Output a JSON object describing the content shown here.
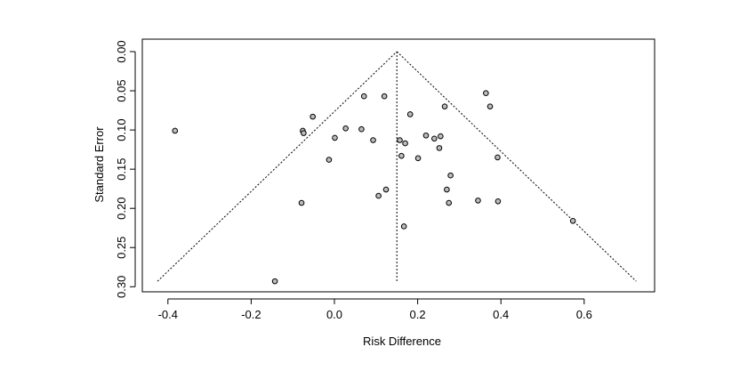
{
  "chart_data": {
    "type": "scatter",
    "title": "",
    "xlabel": "Risk Difference",
    "ylabel": "Standard Error",
    "xlim": [
      -0.45,
      0.75
    ],
    "ylim": [
      0.3,
      0.0
    ],
    "y_axis_reversed": true,
    "x_ticks": [
      -0.4,
      -0.2,
      0.0,
      0.2,
      0.4,
      0.6
    ],
    "x_tick_labels": [
      "-0.4",
      "-0.2",
      "0.0",
      "0.2",
      "0.4",
      "0.6"
    ],
    "y_ticks": [
      0.0,
      0.05,
      0.1,
      0.15,
      0.2,
      0.25,
      0.3
    ],
    "y_tick_labels": [
      "0.00",
      "0.05",
      "0.10",
      "0.15",
      "0.20",
      "0.25",
      "0.30"
    ],
    "grid": false,
    "legend": "none",
    "pooled_estimate": 0.15,
    "funnel": {
      "apex": [
        0.15,
        0.0
      ],
      "left_base": [
        -0.425,
        0.293
      ],
      "right_base": [
        0.725,
        0.293
      ],
      "center_line_bottom": [
        0.15,
        0.293
      ]
    },
    "points": [
      {
        "x": -0.383,
        "y": 0.101
      },
      {
        "x": -0.143,
        "y": 0.293
      },
      {
        "x": -0.079,
        "y": 0.193
      },
      {
        "x": -0.076,
        "y": 0.101
      },
      {
        "x": -0.074,
        "y": 0.104
      },
      {
        "x": -0.052,
        "y": 0.083
      },
      {
        "x": -0.013,
        "y": 0.138
      },
      {
        "x": 0.001,
        "y": 0.11
      },
      {
        "x": 0.027,
        "y": 0.098
      },
      {
        "x": 0.065,
        "y": 0.099
      },
      {
        "x": 0.071,
        "y": 0.057
      },
      {
        "x": 0.093,
        "y": 0.113
      },
      {
        "x": 0.106,
        "y": 0.184
      },
      {
        "x": 0.12,
        "y": 0.057
      },
      {
        "x": 0.124,
        "y": 0.176
      },
      {
        "x": 0.157,
        "y": 0.113
      },
      {
        "x": 0.161,
        "y": 0.133
      },
      {
        "x": 0.167,
        "y": 0.223
      },
      {
        "x": 0.17,
        "y": 0.117
      },
      {
        "x": 0.182,
        "y": 0.08
      },
      {
        "x": 0.201,
        "y": 0.136
      },
      {
        "x": 0.22,
        "y": 0.107
      },
      {
        "x": 0.24,
        "y": 0.111
      },
      {
        "x": 0.252,
        "y": 0.123
      },
      {
        "x": 0.255,
        "y": 0.108
      },
      {
        "x": 0.265,
        "y": 0.07
      },
      {
        "x": 0.27,
        "y": 0.176
      },
      {
        "x": 0.275,
        "y": 0.193
      },
      {
        "x": 0.279,
        "y": 0.158
      },
      {
        "x": 0.345,
        "y": 0.19
      },
      {
        "x": 0.364,
        "y": 0.053
      },
      {
        "x": 0.374,
        "y": 0.07
      },
      {
        "x": 0.392,
        "y": 0.135
      },
      {
        "x": 0.393,
        "y": 0.191
      },
      {
        "x": 0.573,
        "y": 0.216
      }
    ]
  }
}
